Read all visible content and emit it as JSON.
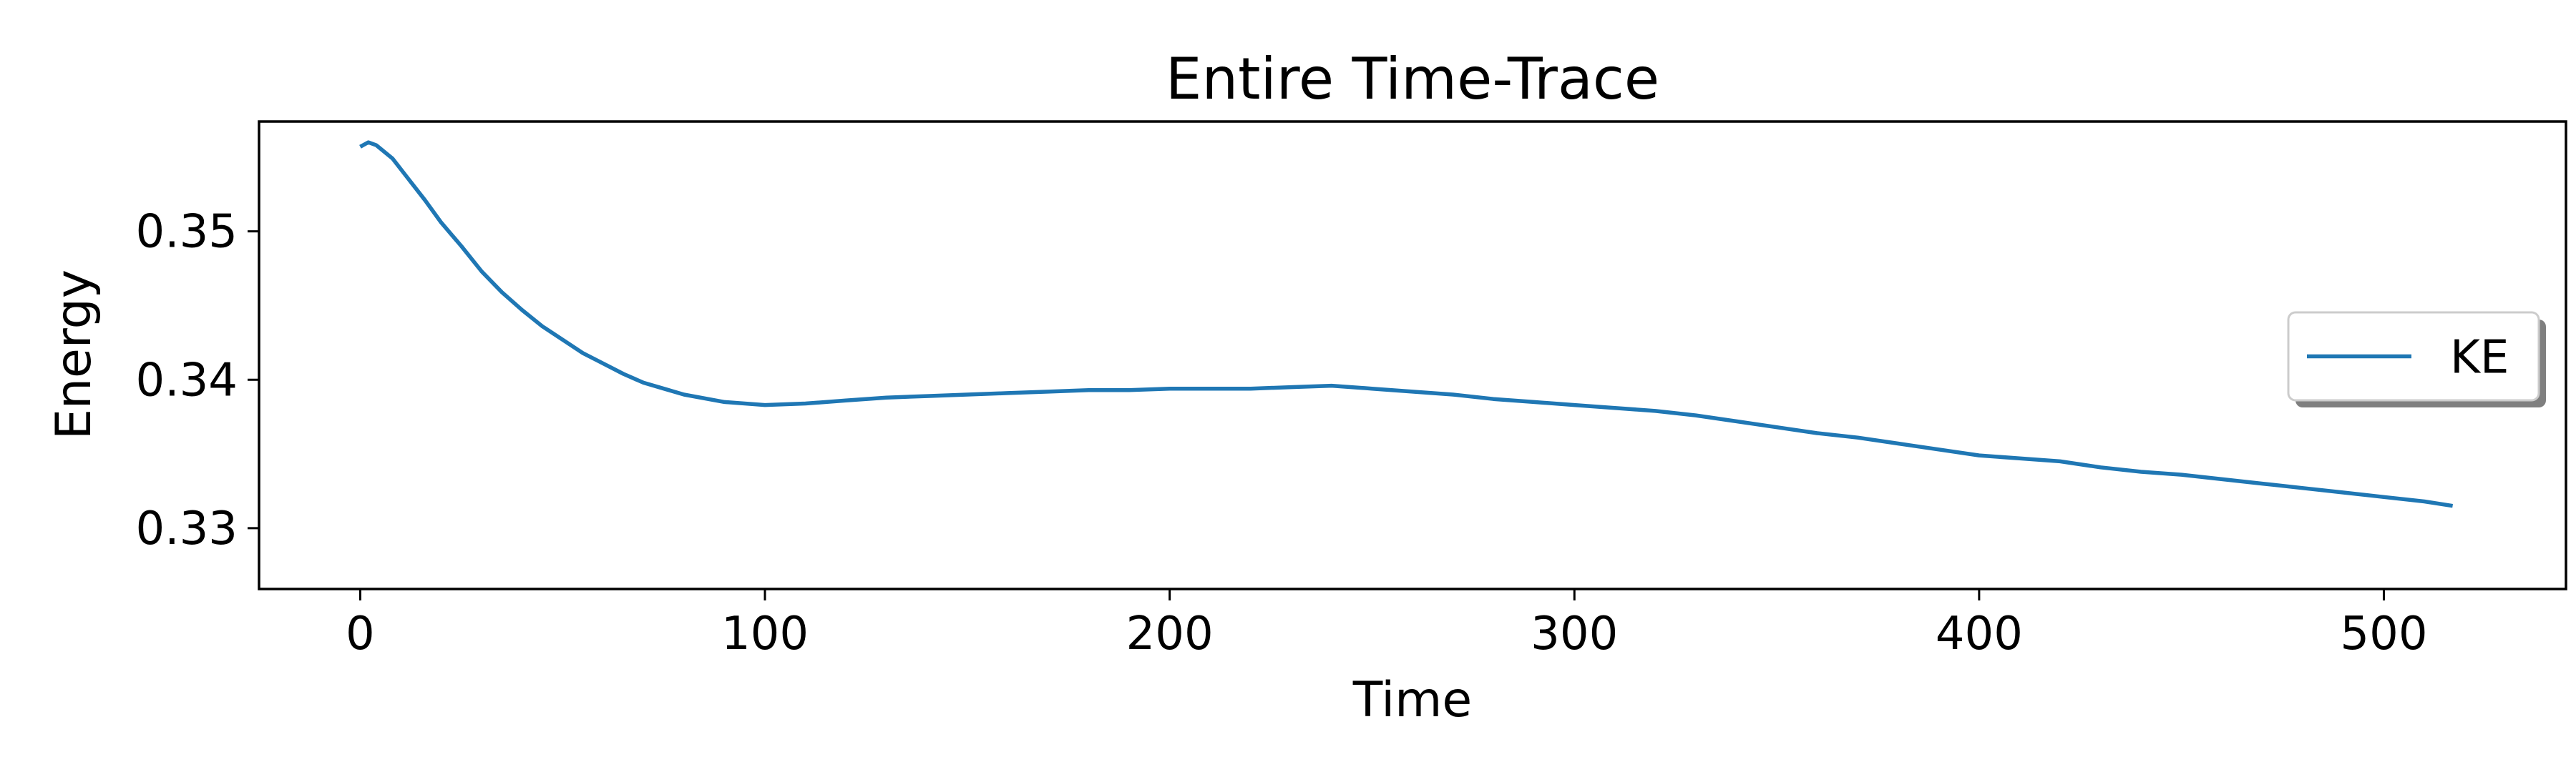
{
  "chart_data": {
    "type": "line",
    "title": "Entire Time-Trace",
    "xlabel": "Time",
    "ylabel": "Energy",
    "xlim": [
      -25,
      545
    ],
    "ylim": [
      0.3259,
      0.3574
    ],
    "xticks": [
      0,
      100,
      200,
      300,
      400,
      500
    ],
    "xtick_labels": [
      "0",
      "100",
      "200",
      "300",
      "400",
      "500"
    ],
    "yticks": [
      0.33,
      0.34,
      0.35
    ],
    "ytick_labels": [
      "0.33",
      "0.34",
      "0.35"
    ],
    "grid": false,
    "legend": {
      "placement": "center-right",
      "entries": [
        "KE"
      ]
    },
    "series": [
      {
        "name": "KE",
        "color": "#1f77b4",
        "x": [
          0,
          2,
          4,
          8,
          12,
          16,
          20,
          25,
          30,
          35,
          40,
          45,
          50,
          55,
          60,
          65,
          70,
          75,
          80,
          90,
          100,
          110,
          120,
          130,
          140,
          150,
          160,
          170,
          180,
          190,
          200,
          210,
          220,
          230,
          240,
          250,
          260,
          270,
          280,
          290,
          300,
          310,
          320,
          330,
          340,
          350,
          360,
          370,
          380,
          390,
          400,
          410,
          420,
          430,
          440,
          450,
          460,
          470,
          480,
          490,
          500,
          510,
          517
        ],
        "y": [
          0.3557,
          0.356,
          0.3558,
          0.3549,
          0.3535,
          0.3521,
          0.3506,
          0.349,
          0.3473,
          0.3459,
          0.3447,
          0.3436,
          0.3427,
          0.3418,
          0.3411,
          0.3404,
          0.3398,
          0.3394,
          0.339,
          0.3385,
          0.3383,
          0.3384,
          0.3386,
          0.3388,
          0.3389,
          0.339,
          0.3391,
          0.3392,
          0.3393,
          0.3393,
          0.3394,
          0.3394,
          0.3394,
          0.3395,
          0.3396,
          0.3394,
          0.3392,
          0.339,
          0.3387,
          0.3385,
          0.3383,
          0.3381,
          0.3379,
          0.3376,
          0.3372,
          0.3368,
          0.3364,
          0.3361,
          0.3357,
          0.3353,
          0.3349,
          0.3347,
          0.3345,
          0.3341,
          0.3338,
          0.3336,
          0.3333,
          0.333,
          0.3327,
          0.3324,
          0.3321,
          0.3318,
          0.3315
        ]
      }
    ]
  }
}
